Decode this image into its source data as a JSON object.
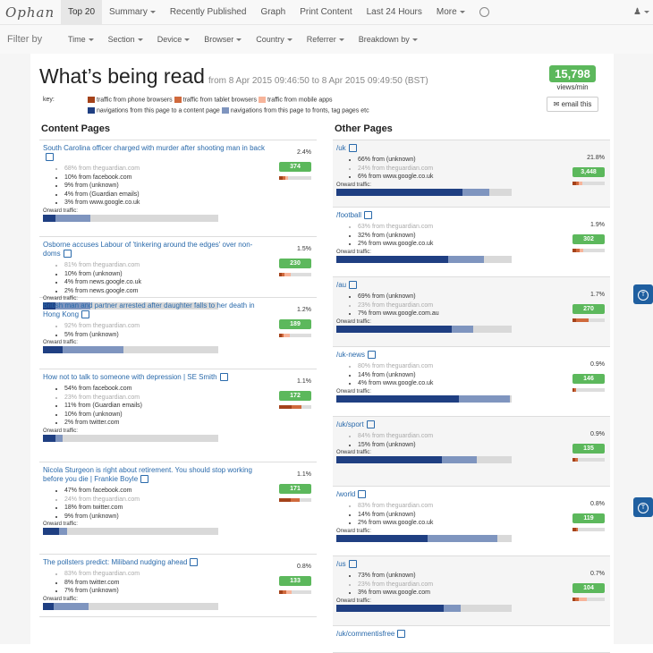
{
  "nav": {
    "brand": "Ophan",
    "items": [
      "Top 20",
      "Summary",
      "Recently Published",
      "Graph",
      "Print Content",
      "Last 24 Hours",
      "More"
    ],
    "active": "Top 20"
  },
  "filter": {
    "label": "Filter by",
    "items": [
      "Time",
      "Section",
      "Device",
      "Browser",
      "Country",
      "Referrer",
      "Breakdown by"
    ]
  },
  "header": {
    "title": "What’s being read",
    "subtitle": "from 8 Apr 2015 09:46:50 to 8 Apr 2015 09:49:50 (BST)",
    "views": "15,798",
    "views_label": "views/min",
    "email_label": "email this"
  },
  "key": {
    "label": "key:",
    "row1": [
      "traffic from phone browsers",
      "traffic from tablet browsers",
      "traffic from mobile apps"
    ],
    "row2": [
      "navigations from this page to a content page",
      "navigations from this page to fronts, tag pages etc"
    ]
  },
  "colors": {
    "phone": "#a4421a",
    "tablet": "#d06a3d",
    "apps": "#f7b49a",
    "content_nav": "#1f3f82",
    "front_nav": "#7f95bf",
    "green": "#5cb85c",
    "link": "#2a6aab"
  },
  "content_pages": {
    "heading": "Content Pages",
    "onward_label": "Onward traffic:",
    "items": [
      {
        "title": "South Carolina officer charged with murder after shooting man in back",
        "pct": "2.4%",
        "count": "374",
        "refs": [
          "68% from theguardian.com",
          "10% from facebook.com",
          "9% from (unknown)",
          "4% from (Guardian emails)",
          "3% from www.google.co.uk"
        ],
        "faded": [
          0
        ],
        "src": [
          0.1,
          0.1,
          0.08
        ],
        "onward": [
          0.07,
          0.2
        ]
      },
      {
        "title": "Osborne accuses Labour of 'tinkering around the edges' over non-doms",
        "pct": "1.5%",
        "count": "230",
        "refs": [
          "81% from theguardian.com",
          "10% from (unknown)",
          "4% from news.google.co.uk",
          "2% from news.google.com"
        ],
        "faded": [
          0
        ],
        "src": [
          0.08,
          0.08,
          0.2
        ],
        "onward": [
          0.07,
          0.2
        ]
      },
      {
        "title": "British man and partner arrested after daughter falls to her death in Hong Kong",
        "pct": "1.2%",
        "count": "189",
        "refs": [
          "92% from theguardian.com",
          "5% from (unknown)"
        ],
        "faded": [
          0
        ],
        "src": [
          0.08,
          0.06,
          0.2
        ],
        "onward": [
          0.11,
          0.35
        ]
      },
      {
        "title": "How not to talk to someone with depression | SE Smith",
        "pct": "1.1%",
        "count": "172",
        "refs": [
          "54% from facebook.com",
          "23% from theguardian.com",
          "11% from (Guardian emails)",
          "10% from (unknown)",
          "2% from twitter.com"
        ],
        "faded": [
          1
        ],
        "src": [
          0.4,
          0.3,
          0.0
        ],
        "onward": [
          0.07,
          0.04
        ]
      },
      {
        "title": "Nicola Sturgeon is right about retirement. You should stop working before you die | Frankie Boyle",
        "pct": "1.1%",
        "count": "171",
        "refs": [
          "47% from facebook.com",
          "24% from theguardian.com",
          "18% from twitter.com",
          "9% from (unknown)"
        ],
        "faded": [
          1
        ],
        "src": [
          0.35,
          0.3,
          0.0
        ],
        "onward": [
          0.09,
          0.05
        ]
      },
      {
        "title": "The pollsters predict: Miliband nudging ahead",
        "pct": "0.8%",
        "count": "133",
        "refs": [
          "83% from theguardian.com",
          "8% from twitter.com",
          "7% from (unknown)"
        ],
        "faded": [
          0
        ],
        "src": [
          0.1,
          0.12,
          0.18
        ],
        "onward": [
          0.06,
          0.2
        ]
      }
    ]
  },
  "other_pages": {
    "heading": "Other Pages",
    "onward_label": "Onward traffic:",
    "items": [
      {
        "title": "/uk",
        "pct": "21.8%",
        "count": "3,448",
        "refs": [
          "66% from (unknown)",
          "24% from theguardian.com",
          "6% from www.google.co.uk"
        ],
        "faded": [
          1
        ],
        "src": [
          0.1,
          0.1,
          0.1
        ],
        "onward": [
          0.72,
          0.15
        ]
      },
      {
        "title": "/football",
        "pct": "1.9%",
        "count": "302",
        "refs": [
          "63% from theguardian.com",
          "32% from (unknown)",
          "2% from www.google.co.uk"
        ],
        "faded": [
          0
        ],
        "src": [
          0.12,
          0.1,
          0.1
        ],
        "onward": [
          0.64,
          0.2
        ]
      },
      {
        "title": "/au",
        "pct": "1.7%",
        "count": "270",
        "refs": [
          "69% from (unknown)",
          "23% from theguardian.com",
          "7% from www.google.com.au"
        ],
        "faded": [
          1
        ],
        "src": [
          0.1,
          0.4,
          0.0
        ],
        "onward": [
          0.66,
          0.12
        ]
      },
      {
        "title": "/uk-news",
        "pct": "0.9%",
        "count": "146",
        "refs": [
          "80% from theguardian.com",
          "14% from (unknown)",
          "4% from www.google.co.uk"
        ],
        "faded": [
          0
        ],
        "src": [
          0.06,
          0.06,
          0.0
        ],
        "onward": [
          0.7,
          0.29
        ]
      },
      {
        "title": "/uk/sport",
        "pct": "0.9%",
        "count": "135",
        "refs": [
          "84% from theguardian.com",
          "15% from (unknown)"
        ],
        "faded": [
          0
        ],
        "src": [
          0.08,
          0.08,
          0.0
        ],
        "onward": [
          0.6,
          0.2
        ]
      },
      {
        "title": "/world",
        "pct": "0.8%",
        "count": "119",
        "refs": [
          "83% from theguardian.com",
          "14% from (unknown)",
          "2% from www.google.co.uk"
        ],
        "faded": [
          0
        ],
        "src": [
          0.1,
          0.08,
          0.0
        ],
        "onward": [
          0.52,
          0.4
        ]
      },
      {
        "title": "/us",
        "pct": "0.7%",
        "count": "104",
        "refs": [
          "73% from (unknown)",
          "23% from theguardian.com",
          "3% from www.google.com"
        ],
        "faded": [
          1
        ],
        "src": [
          0.08,
          0.12,
          0.25
        ],
        "onward": [
          0.61,
          0.1
        ]
      },
      {
        "title": "/uk/commentisfree",
        "pct": "",
        "count": "",
        "refs": [],
        "faded": [],
        "src": [
          0,
          0,
          0
        ],
        "onward": [
          0,
          0
        ]
      }
    ]
  }
}
